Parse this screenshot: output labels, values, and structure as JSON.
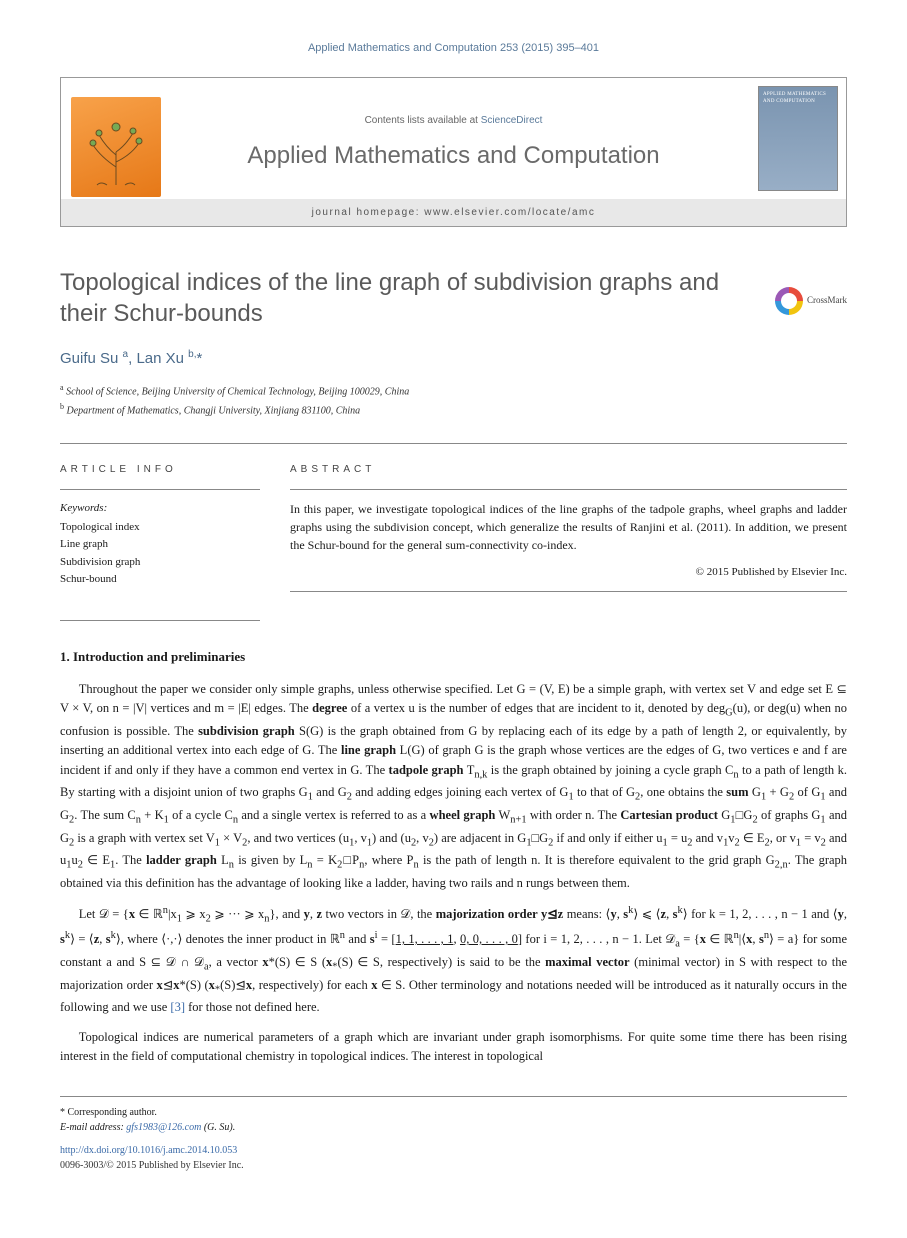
{
  "running_head": {
    "journal_link_text": "Applied Mathematics and Computation 253 (2015) 395–401"
  },
  "header": {
    "contents_prefix": "Contents lists available at ",
    "contents_link": "ScienceDirect",
    "journal_title": "Applied Mathematics and Computation",
    "homepage_label": "journal homepage: www.elsevier.com/locate/amc",
    "elsevier_label": "ELSEVIER",
    "cover_text": "APPLIED MATHEMATICS AND COMPUTATION"
  },
  "article": {
    "title": "Topological indices of the line graph of subdivision graphs and their Schur-bounds",
    "crossmark_label": "CrossMark"
  },
  "authors": {
    "line_html": "Guifu Su <sup>a</sup>, Lan Xu <sup>b,</sup><span class='star'>*</span>",
    "names": [
      "Guifu Su",
      "Lan Xu"
    ]
  },
  "affiliations": [
    "School of Science, Beijing University of Chemical Technology, Beijing 100029, China",
    "Department of Mathematics, Changji University, Xinjiang 831100, China"
  ],
  "article_info": {
    "label": "ARTICLE INFO",
    "keywords_label": "Keywords:",
    "keywords": [
      "Topological index",
      "Line graph",
      "Subdivision graph",
      "Schur-bound"
    ]
  },
  "abstract": {
    "label": "ABSTRACT",
    "text": "In this paper, we investigate topological indices of the line graphs of the tadpole graphs, wheel graphs and ladder graphs using the subdivision concept, which generalize the results of Ranjini et al. (2011). In addition, we present the Schur-bound for the general sum-connectivity co-index.",
    "copyright": "© 2015 Published by Elsevier Inc."
  },
  "section1": {
    "heading": "1. Introduction and preliminaries",
    "para1": "Throughout the paper we consider only simple graphs, unless otherwise specified. Let G = (V, E) be a simple graph, with vertex set V and edge set E ⊆ V × V, on n = |V| vertices and m = |E| edges. The <b>degree</b> of a vertex u is the number of edges that are incident to it, denoted by deg<sub>G</sub>(u), or deg(u) when no confusion is possible. The <b>subdivision graph</b> S(G) is the graph obtained from G by replacing each of its edge by a path of length 2, or equivalently, by inserting an additional vertex into each edge of G. The <b>line graph</b> L(G) of graph G is the graph whose vertices are the edges of G, two vertices e and f are incident if and only if they have a common end vertex in G. The <b>tadpole graph</b> T<sub>n,k</sub> is the graph obtained by joining a cycle graph C<sub>n</sub> to a path of length k. By starting with a disjoint union of two graphs G<sub>1</sub> and G<sub>2</sub> and adding edges joining each vertex of G<sub>1</sub> to that of G<sub>2</sub>, one obtains the <b>sum</b> G<sub>1</sub> + G<sub>2</sub> of G<sub>1</sub> and G<sub>2</sub>. The sum C<sub>n</sub> + K<sub>1</sub> of a cycle C<sub>n</sub> and a single vertex is referred to as a <b>wheel graph</b> W<sub>n+1</sub> with order n. The <b>Cartesian product</b> G<sub>1</sub>□G<sub>2</sub> of graphs G<sub>1</sub> and G<sub>2</sub> is a graph with vertex set V<sub>1</sub> × V<sub>2</sub>, and two vertices (u<sub>1</sub>, v<sub>1</sub>) and (u<sub>2</sub>, v<sub>2</sub>) are adjacent in G<sub>1</sub>□G<sub>2</sub> if and only if either u<sub>1</sub> = u<sub>2</sub> and v<sub>1</sub>v<sub>2</sub> ∈ E<sub>2</sub>, or v<sub>1</sub> = v<sub>2</sub> and u<sub>1</sub>u<sub>2</sub> ∈ E<sub>1</sub>. The <b>ladder graph</b> L<sub>n</sub> is given by L<sub>n</sub> = K<sub>2</sub>□P<sub>n</sub>, where P<sub>n</sub> is the path of length n. It is therefore equivalent to the grid graph G<sub>2,n</sub>. The graph obtained via this definition has the advantage of looking like a ladder, having two rails and n rungs between them.",
    "para2": "Let 𝒟 = {<b>x</b> ∈ ℝ<sup>n</sup>|x<sub>1</sub> ⩾ x<sub>2</sub> ⩾ ··· ⩾ x<sub>n</sub>}, and <b>y</b>, <b>z</b> two vectors in 𝒟, the <b>majorization order y⊴z</b> means: ⟨<b>y</b>, <b>s</b><sup>k</sup>⟩ ⩽ ⟨<b>z</b>, <b>s</b><sup>k</sup>⟩ for k = 1, 2, . . . , n − 1 and ⟨<b>y</b>, <b>s</b><sup>k</sup>⟩ = ⟨<b>z</b>, <b>s</b><sup>k</sup>⟩, where ⟨·,·⟩ denotes the inner product in ℝ<sup>n</sup> and <b>s</b><sup>i</sup> = [<u>1, 1, . . . , 1</u>, <u>0, 0, . . . , 0</u>] for i = 1, 2, . . . , n − 1. Let 𝒟<sub>a</sub> = {<b>x</b> ∈ ℝ<sup>n</sup>|⟨<b>x</b>, <b>s</b><sup>n</sup>⟩ = a} for some constant a and S ⊆ 𝒟 ∩ 𝒟<sub>a</sub>, a vector <b>x</b>*(S) ∈ S (<b>x</b><sub>*</sub>(S) ∈ S, respectively) is said to be the <b>maximal vector</b> (minimal vector) in S with respect to the majorization order <b>x</b>⊴<b>x</b>*(S) (<b>x</b><sub>*</sub>(S)⊴<b>x</b>, respectively) for each <b>x</b> ∈ S. Other terminology and notations needed will be introduced as it naturally occurs in the following and we use <span class='ref-link'>[3]</span> for those not defined here.",
    "para3": "Topological indices are numerical parameters of a graph which are invariant under graph isomorphisms. For quite some time there has been rising interest in the field of computational chemistry in topological indices. The interest in topological"
  },
  "footnotes": {
    "corresponding": "* Corresponding author.",
    "email_label": "E-mail address:",
    "email": "gfs1983@126.com",
    "email_suffix": "(G. Su).",
    "doi": "http://dx.doi.org/10.1016/j.amc.2014.10.053",
    "issn": "0096-3003/© 2015 Published by Elsevier Inc."
  },
  "colors": {
    "link": "#5a7a9a",
    "title_gray": "#5a5a5a",
    "ref_link": "#3a6aa8",
    "elsevier_orange": "#e67817"
  }
}
